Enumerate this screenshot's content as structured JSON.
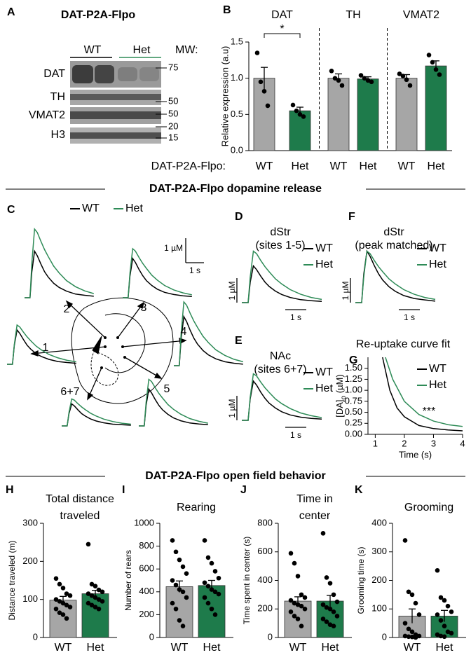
{
  "panel_a": {
    "panel": "A",
    "title": "DAT-P2A-Flpo",
    "lanes": [
      {
        "label": "WT",
        "color": "#000000"
      },
      {
        "label": "Het",
        "color": "#2e8b57"
      }
    ],
    "mw_label": "MW:",
    "rows": [
      "DAT",
      "TH",
      "VMAT2",
      "H3"
    ],
    "mw_markers": [
      "75",
      "50",
      "50",
      "20",
      "15"
    ]
  },
  "sections": [
    "DAT-P2A-Flpo dopamine release",
    "DAT-P2A-Flpo open field behavior"
  ],
  "chart_data": [
    {
      "type": "grouped_bar",
      "panel": "B",
      "y_label": "Relative expression (a.u)",
      "x_label": "DAT-P2A-Flpo:",
      "colors": [
        "#a6a6a6",
        "#1e7b4b"
      ],
      "ylim": [
        0,
        1.5
      ],
      "yticks": [
        {
          "value": 0,
          "label": "0.0"
        },
        0.5,
        {
          "value": 1,
          "label": "1.0"
        },
        1.5
      ],
      "groups": [
        {
          "name": "DAT",
          "categories": [
            "WT",
            "Het"
          ],
          "values": [
            1.0,
            0.55
          ],
          "errors": [
            0.15,
            0.05
          ],
          "points": [
            [
              1.35,
              0.95,
              0.82,
              0.62
            ],
            [
              0.63,
              0.55,
              0.5,
              0.47
            ]
          ],
          "significance": "*"
        },
        {
          "name": "TH",
          "categories": [
            "WT",
            "Het"
          ],
          "values": [
            1.0,
            0.99
          ],
          "errors": [
            0.06,
            0.03
          ],
          "points": [
            [
              1.1,
              1.0,
              0.97,
              0.9
            ],
            [
              1.04,
              1.0,
              0.97,
              0.95
            ]
          ]
        },
        {
          "name": "VMAT2",
          "categories": [
            "WT",
            "Het"
          ],
          "values": [
            1.0,
            1.17
          ],
          "errors": [
            0.05,
            0.07
          ],
          "points": [
            [
              1.06,
              1.03,
              0.98,
              0.9
            ],
            [
              1.32,
              1.22,
              1.12,
              1.05
            ]
          ]
        }
      ]
    },
    {
      "type": "bar",
      "panel": "H",
      "title": [
        "Total distance",
        "traveled"
      ],
      "y_label": "Distance traveled (m)",
      "categories": [
        "WT",
        "Het"
      ],
      "colors": [
        "#a6a6a6",
        "#1e7b4b"
      ],
      "values": [
        98,
        115
      ],
      "errors": [
        10,
        9
      ],
      "points": [
        [
          155,
          140,
          130,
          115,
          110,
          100,
          95,
          90,
          85,
          80,
          75,
          65,
          60,
          50
        ],
        [
          245,
          140,
          135,
          125,
          120,
          115,
          110,
          105,
          100,
          95,
          90,
          85,
          80,
          75
        ]
      ],
      "ylim": [
        0,
        300
      ],
      "yticks": [
        0,
        100,
        200,
        300
      ]
    },
    {
      "type": "bar",
      "panel": "I",
      "title": [
        "Rearing"
      ],
      "y_label": "Number of rears",
      "categories": [
        "WT",
        "Het"
      ],
      "colors": [
        "#a6a6a6",
        "#1e7b4b"
      ],
      "values": [
        445,
        455
      ],
      "errors": [
        50,
        45
      ],
      "points": [
        [
          850,
          750,
          680,
          620,
          560,
          500,
          460,
          420,
          400,
          350,
          300,
          250,
          150,
          100
        ],
        [
          850,
          700,
          650,
          580,
          520,
          480,
          450,
          420,
          400,
          380,
          350,
          300,
          250,
          200
        ]
      ],
      "ylim": [
        0,
        1000
      ],
      "yticks": [
        0,
        200,
        400,
        600,
        800,
        1000
      ]
    },
    {
      "type": "bar",
      "panel": "J",
      "title": [
        "Time in",
        "center"
      ],
      "y_label": "Time spent in center (s)",
      "categories": [
        "WT",
        "Het"
      ],
      "colors": [
        "#a6a6a6",
        "#1e7b4b"
      ],
      "values": [
        255,
        255
      ],
      "errors": [
        30,
        40
      ],
      "points": [
        [
          590,
          520,
          430,
          300,
          280,
          260,
          240,
          230,
          220,
          200,
          180,
          150,
          130,
          80
        ],
        [
          730,
          420,
          380,
          300,
          250,
          230,
          210,
          200,
          180,
          150,
          130,
          110,
          90,
          80
        ]
      ],
      "ylim": [
        0,
        800
      ],
      "yticks": [
        0,
        200,
        400,
        600,
        800
      ]
    },
    {
      "type": "bar",
      "panel": "K",
      "title": [
        "Grooming"
      ],
      "y_label": "Grooming time (s)",
      "categories": [
        "WT",
        "Het"
      ],
      "colors": [
        "#a6a6a6",
        "#1e7b4b"
      ],
      "values": [
        75,
        75
      ],
      "errors": [
        25,
        20
      ],
      "points": [
        [
          340,
          160,
          150,
          120,
          80,
          50,
          30,
          20,
          10,
          5,
          5,
          3,
          2,
          0
        ],
        [
          235,
          140,
          130,
          110,
          90,
          80,
          60,
          40,
          20,
          15,
          10,
          5,
          3
        ]
      ],
      "ylim": [
        0,
        400
      ],
      "yticks": [
        0,
        100,
        200,
        300,
        400
      ]
    },
    {
      "type": "trace_map",
      "panel": "C",
      "legend": [
        {
          "name": "WT",
          "color": "#000000"
        },
        {
          "name": "Het",
          "color": "#2e8b57"
        }
      ],
      "x": [
        -0.3,
        0,
        0.1,
        0.25,
        0.4,
        0.6,
        0.8,
        1.0,
        1.3,
        1.6,
        2.0,
        2.5,
        3.0,
        3.5
      ],
      "scale_y": {
        "value": 1,
        "label": "1 µM"
      },
      "scale_x": {
        "value": 1,
        "label": "1 s"
      },
      "sites": [
        {
          "label": "2",
          "series_values": [
            [
              0,
              0,
              1.05,
              1.9,
              1.71,
              1.37,
              1.06,
              0.84,
              0.59,
              0.42,
              0.27,
              0.15,
              0.1,
              0.06
            ],
            [
              0,
              0,
              1.4,
              2.8,
              2.66,
              2.3,
              1.96,
              1.68,
              1.29,
              1.01,
              0.7,
              0.45,
              0.28,
              0.17
            ]
          ]
        },
        {
          "label": "3",
          "series_values": [
            [
              0,
              0,
              0.88,
              1.6,
              1.44,
              1.15,
              0.9,
              0.7,
              0.5,
              0.35,
              0.22,
              0.13,
              0.08,
              0.05
            ],
            [
              0,
              0,
              1.0,
              2.0,
              1.9,
              1.64,
              1.4,
              1.2,
              0.92,
              0.72,
              0.5,
              0.32,
              0.2,
              0.12
            ]
          ]
        },
        {
          "label": "1",
          "series_values": [
            [
              0,
              0,
              0.77,
              1.4,
              1.26,
              1.01,
              0.78,
              0.62,
              0.43,
              0.31,
              0.2,
              0.11,
              0.07,
              0.04
            ],
            [
              0,
              0,
              0.8,
              1.6,
              1.52,
              1.31,
              1.12,
              0.96,
              0.74,
              0.58,
              0.4,
              0.26,
              0.16,
              0.1
            ]
          ]
        },
        {
          "label": "4",
          "series_values": [
            [
              0,
              0,
              1.1,
              2.0,
              1.8,
              1.44,
              1.12,
              0.88,
              0.62,
              0.44,
              0.28,
              0.16,
              0.1,
              0.06
            ],
            [
              0,
              0,
              1.3,
              2.6,
              2.47,
              2.13,
              1.82,
              1.56,
              1.2,
              0.94,
              0.65,
              0.42,
              0.26,
              0.16
            ]
          ]
        },
        {
          "label": "6+7",
          "series_values": [
            [
              0,
              0,
              0.5,
              0.9,
              0.81,
              0.65,
              0.5,
              0.4,
              0.28,
              0.2,
              0.13,
              0.07,
              0.05,
              0.03
            ],
            [
              0,
              0,
              0.55,
              1.1,
              1.05,
              0.9,
              0.77,
              0.66,
              0.51,
              0.4,
              0.28,
              0.18,
              0.11,
              0.07
            ]
          ]
        },
        {
          "label": "5",
          "series_values": [
            [
              0,
              0,
              0.83,
              1.5,
              1.35,
              1.08,
              0.84,
              0.66,
              0.47,
              0.33,
              0.21,
              0.12,
              0.08,
              0.05
            ],
            [
              0,
              0,
              0.95,
              1.9,
              1.81,
              1.56,
              1.33,
              1.14,
              0.87,
              0.68,
              0.48,
              0.3,
              0.19,
              0.11
            ]
          ]
        }
      ]
    },
    {
      "type": "trace",
      "panel": "D",
      "title": [
        "dStr",
        "(sites 1-5)"
      ],
      "x": [
        -0.3,
        0,
        0.1,
        0.25,
        0.4,
        0.6,
        0.8,
        1.0,
        1.3,
        1.6,
        2.0,
        2.5,
        3.0,
        3.5
      ],
      "scale_y": {
        "value": 1,
        "label": "1 µM"
      },
      "scale_x": {
        "value": 1,
        "label": "1 s"
      },
      "series": [
        {
          "name": "WT",
          "color": "#000000",
          "values": [
            0,
            0,
            0.83,
            1.5,
            1.35,
            1.08,
            0.84,
            0.66,
            0.47,
            0.33,
            0.21,
            0.12,
            0.08,
            0.05
          ]
        },
        {
          "name": "Het",
          "color": "#2e8b57",
          "values": [
            0,
            0,
            1.05,
            2.1,
            2.0,
            1.72,
            1.47,
            1.26,
            0.97,
            0.76,
            0.53,
            0.34,
            0.21,
            0.13
          ]
        }
      ]
    },
    {
      "type": "trace",
      "panel": "E",
      "title": [
        "NAc",
        "(sites 6+7)"
      ],
      "x": [
        -0.3,
        0,
        0.1,
        0.25,
        0.4,
        0.6,
        0.8,
        1.0,
        1.3,
        1.6,
        2.0,
        2.5,
        3.0,
        3.5
      ],
      "scale_y": {
        "value": 1,
        "label": "1 µM"
      },
      "scale_x": {
        "value": 1,
        "label": "1 s"
      },
      "series": [
        {
          "name": "WT",
          "color": "#000000",
          "values": [
            0,
            0,
            0.88,
            1.6,
            1.44,
            1.15,
            0.9,
            0.7,
            0.5,
            0.35,
            0.22,
            0.13,
            0.08,
            0.05
          ]
        },
        {
          "name": "Het",
          "color": "#2e8b57",
          "values": [
            0,
            0,
            0.95,
            1.9,
            1.81,
            1.56,
            1.33,
            1.14,
            0.87,
            0.68,
            0.48,
            0.3,
            0.19,
            0.11
          ]
        }
      ]
    },
    {
      "type": "trace",
      "panel": "F",
      "title": [
        "dStr",
        "(peak matched)"
      ],
      "x": [
        -0.3,
        0,
        0.1,
        0.25,
        0.4,
        0.6,
        0.8,
        1.0,
        1.3,
        1.6,
        2.0,
        2.5,
        3.0,
        3.5
      ],
      "scale_y": {
        "value": 1,
        "label": "1 µM"
      },
      "scale_x": {
        "value": 1,
        "label": "1 s"
      },
      "series": [
        {
          "name": "WT",
          "color": "#000000",
          "values": [
            0,
            0,
            1.16,
            2.1,
            1.89,
            1.51,
            1.18,
            0.92,
            0.65,
            0.46,
            0.29,
            0.17,
            0.11,
            0.06
          ]
        },
        {
          "name": "Het",
          "color": "#2e8b57",
          "values": [
            0,
            0,
            1.05,
            2.1,
            2.0,
            1.72,
            1.47,
            1.26,
            0.97,
            0.76,
            0.53,
            0.34,
            0.21,
            0.13
          ]
        }
      ]
    },
    {
      "type": "line",
      "panel": "G",
      "title": "Re-uptake curve fit",
      "x_label": "Time (s)",
      "y_label": [
        "[DA]",
        "o",
        " (µM)"
      ],
      "annotation": "***",
      "xlim": [
        0.75,
        4
      ],
      "xticks": [
        1,
        2,
        3,
        4
      ],
      "ylim": [
        0,
        1.75
      ],
      "yticks": [
        {
          "value": 0,
          "label": "0.00"
        },
        {
          "value": 0.25,
          "label": "0.25"
        },
        {
          "value": 0.5,
          "label": "0.50"
        },
        {
          "value": 0.75,
          "label": "0.75"
        },
        {
          "value": 1,
          "label": "1.00"
        },
        {
          "value": 1.25,
          "label": "1.25"
        },
        {
          "value": 1.5,
          "label": "1.50"
        }
      ],
      "series": [
        {
          "name": "WT",
          "color": "#000000",
          "x": [
            1.25,
            1.5,
            1.75,
            2,
            2.5,
            3,
            3.5,
            4
          ],
          "values": [
            1.75,
            1.0,
            0.6,
            0.4,
            0.2,
            0.13,
            0.1,
            0.08
          ]
        },
        {
          "name": "Het",
          "color": "#2e8b57",
          "x": [
            1.35,
            1.6,
            2,
            2.5,
            3,
            3.5,
            4
          ],
          "values": [
            1.75,
            1.25,
            0.75,
            0.45,
            0.3,
            0.22,
            0.18
          ]
        }
      ]
    }
  ]
}
